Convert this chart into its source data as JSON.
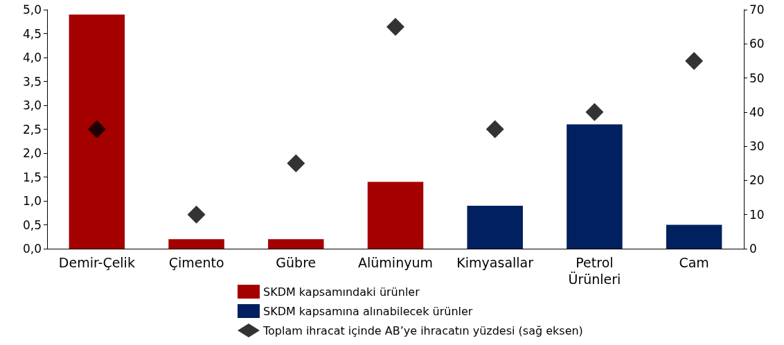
{
  "chart_data": {
    "type": "bar",
    "stacked": true,
    "categories": [
      "Demir-Çelik",
      "Çimento",
      "Gübre",
      "Alüminyum",
      "Kimyasallar",
      "Petrol Ürünleri",
      "Cam"
    ],
    "series": [
      {
        "name": "SKDM kapsamındaki ürünler",
        "color": "#a50000",
        "values": [
          4.9,
          0.2,
          0.2,
          1.4,
          null,
          null,
          null
        ]
      },
      {
        "name": "SKDM kapsamına alınabilecek ürünler",
        "color": "#002060",
        "values": [
          null,
          null,
          null,
          null,
          0.9,
          2.6,
          0.5
        ]
      },
      {
        "name": "Toplam ihracat içinde AB’ye ihracatın yüzdesi (sağ eksen)",
        "type": "scatter",
        "axis": "y2",
        "marker": "diamond",
        "color": "#000000",
        "values": [
          35,
          10,
          25,
          65,
          35,
          40,
          55
        ]
      }
    ],
    "ylim": [
      0,
      5
    ],
    "yticks": [
      {
        "value": 0,
        "label": "0,0"
      },
      {
        "value": 0.5,
        "label": "0,5"
      },
      {
        "value": 1,
        "label": "1,0"
      },
      {
        "value": 1.5,
        "label": "1,5"
      },
      {
        "value": 2,
        "label": "2,0"
      },
      {
        "value": 2.5,
        "label": "2,5"
      },
      {
        "value": 3,
        "label": "3,0"
      },
      {
        "value": 3.5,
        "label": "3,5"
      },
      {
        "value": 4,
        "label": "4,0"
      },
      {
        "value": 4.5,
        "label": "4,5"
      },
      {
        "value": 5,
        "label": "5,0"
      }
    ],
    "y2lim": [
      0,
      70
    ],
    "y2ticks": [
      0,
      10,
      20,
      30,
      40,
      50,
      60,
      70
    ],
    "grid": false,
    "legend": "bottom"
  }
}
